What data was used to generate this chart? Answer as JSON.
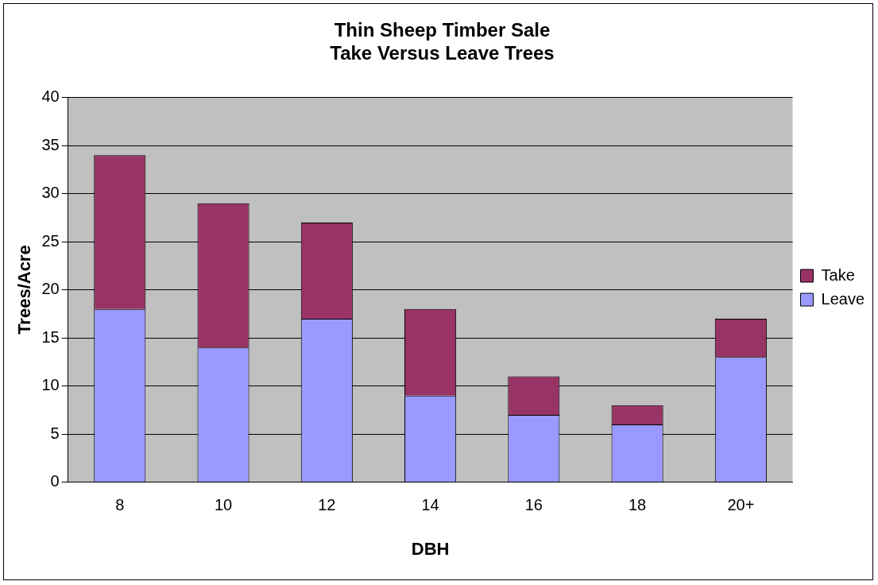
{
  "chart_data": {
    "type": "bar",
    "title": "Thin Sheep Timber Sale\nTake Versus Leave Trees",
    "xlabel": "DBH",
    "ylabel": "Trees/Acre",
    "categories": [
      "8",
      "10",
      "12",
      "14",
      "16",
      "18",
      "20+"
    ],
    "stacked": true,
    "series": [
      {
        "name": "Leave",
        "color": "#9999ff",
        "values": [
          18,
          14,
          17,
          9,
          7,
          6,
          13
        ]
      },
      {
        "name": "Take",
        "color": "#993366",
        "values": [
          16,
          15,
          10,
          9,
          4,
          2,
          4
        ]
      }
    ],
    "ylim": [
      0,
      40
    ],
    "yticks": [
      0,
      5,
      10,
      15,
      20,
      25,
      30,
      35,
      40
    ],
    "grid": "y",
    "legend": "right"
  }
}
